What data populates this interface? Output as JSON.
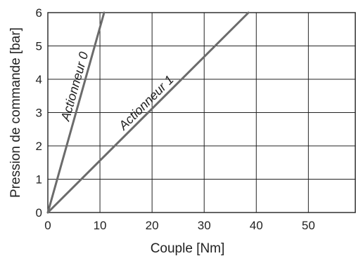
{
  "chart_data": {
    "type": "line",
    "xlabel": "Couple [Nm]",
    "ylabel": "Pression de commande [bar]",
    "xlim": [
      0,
      59
    ],
    "ylim": [
      0,
      6
    ],
    "x_ticks": [
      0,
      10,
      20,
      30,
      40,
      50
    ],
    "y_ticks": [
      0,
      1,
      2,
      3,
      4,
      5,
      6
    ],
    "grid": true,
    "series": [
      {
        "name": "Actionneur 0",
        "x": [
          0,
          10.8
        ],
        "y": [
          0,
          6
        ]
      },
      {
        "name": "Actionneur 1",
        "x": [
          0,
          38.5
        ],
        "y": [
          0,
          6
        ]
      }
    ],
    "colors": {
      "line": "#6b6b6b",
      "grid": "#222222"
    }
  }
}
